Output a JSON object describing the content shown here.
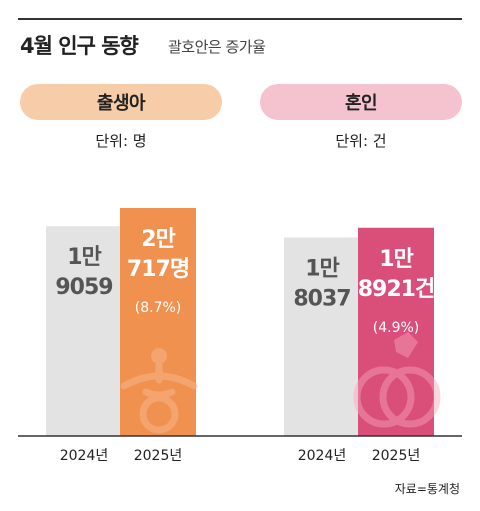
{
  "header": {
    "title": "4월 인구 동향",
    "subtitle": "괄호안은 증가율"
  },
  "panels": [
    {
      "label": "출생아",
      "unit": "단위: 명"
    },
    {
      "label": "혼인",
      "unit": "단위: 건"
    }
  ],
  "chart_data": [
    {
      "type": "bar",
      "title": "출생아",
      "categories": [
        "2024년",
        "2025년"
      ],
      "values": [
        19059,
        20717
      ],
      "value_labels": [
        [
          "1만",
          "9059"
        ],
        [
          "2만",
          "717명"
        ]
      ],
      "growth_label": "(8.7%)",
      "ylim": [
        0,
        30000
      ],
      "colors": [
        "#e3e3e3",
        "#f0914f"
      ]
    },
    {
      "type": "bar",
      "title": "혼인",
      "categories": [
        "2024년",
        "2025년"
      ],
      "values": [
        18037,
        18921
      ],
      "value_labels": [
        [
          "1만",
          "8037"
        ],
        [
          "1만",
          "8921건"
        ]
      ],
      "growth_label": "(4.9%)",
      "ylim": [
        0,
        30000
      ],
      "colors": [
        "#e3e3e3",
        "#d94f7a"
      ]
    }
  ],
  "source": "자료=통계청"
}
